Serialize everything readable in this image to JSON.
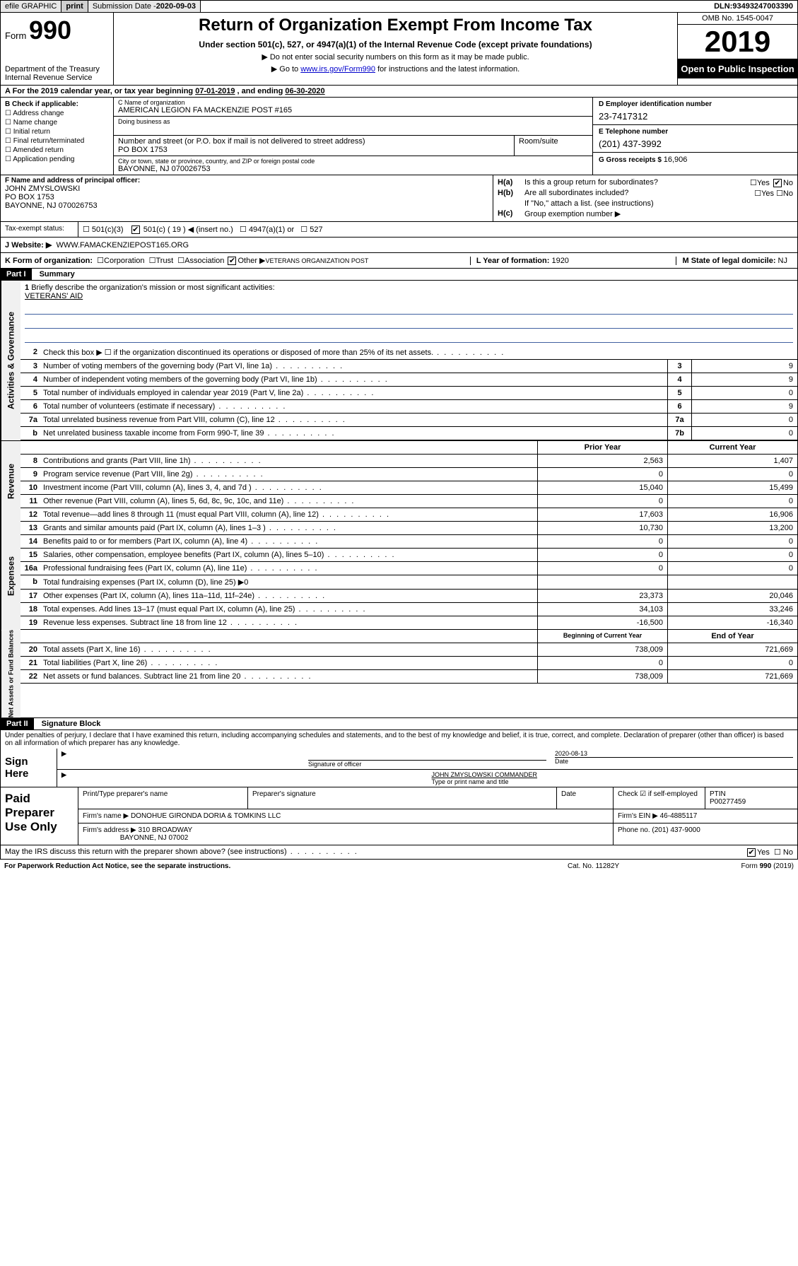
{
  "topbar": {
    "efile": "efile GRAPHIC",
    "print": "print",
    "subdate_label": "Submission Date - ",
    "subdate": "2020-09-03",
    "dln_label": "DLN: ",
    "dln": "93493247003390"
  },
  "header": {
    "form_label": "Form",
    "form_num": "990",
    "dept": "Department of the Treasury\nInternal Revenue Service",
    "title": "Return of Organization Exempt From Income Tax",
    "sub1": "Under section 501(c), 527, or 4947(a)(1) of the Internal Revenue Code (except private foundations)",
    "sub2": "▶ Do not enter social security numbers on this form as it may be made public.",
    "sub3_pre": "▶ Go to ",
    "sub3_link": "www.irs.gov/Form990",
    "sub3_post": " for instructions and the latest information.",
    "omb": "OMB No. 1545-0047",
    "year": "2019",
    "open": "Open to Public Inspection"
  },
  "period": {
    "text": "A For the 2019 calendar year, or tax year beginning ",
    "begin": "07-01-2019",
    "mid": " , and ending ",
    "end": "06-30-2020"
  },
  "checkif": {
    "label": "B Check if applicable:",
    "opts": [
      "Address change",
      "Name change",
      "Initial return",
      "Final return/terminated",
      "Amended return",
      "Application pending"
    ]
  },
  "entity": {
    "name_label": "C Name of organization",
    "name": "AMERICAN LEGION FA MACKENZIE POST #165",
    "dba_label": "Doing business as",
    "addr_label": "Number and street (or P.O. box if mail is not delivered to street address)",
    "room_label": "Room/suite",
    "addr": "PO BOX 1753",
    "city_label": "City or town, state or province, country, and ZIP or foreign postal code",
    "city": "BAYONNE, NJ  070026753"
  },
  "ein": {
    "label": "D Employer identification number",
    "value": "23-7417312"
  },
  "tel": {
    "label": "E Telephone number",
    "value": "(201) 437-3992"
  },
  "gross": {
    "label": "G Gross receipts $ ",
    "value": "16,906"
  },
  "officer": {
    "label": "F  Name and address of principal officer:",
    "name": "JOHN ZMYSLOWSKI",
    "addr1": "PO BOX 1753",
    "addr2": "BAYONNE, NJ  070026753"
  },
  "h": {
    "ha": "Is this a group return for subordinates?",
    "ha_yes": "Yes",
    "ha_no": "No",
    "hb": "Are all subordinates included?",
    "hb_note": "If \"No,\" attach a list. (see instructions)",
    "hc": "Group exemption number ▶"
  },
  "taxexempt": {
    "label": "Tax-exempt status:",
    "c19": "501(c) ( 19 ) ◀ (insert no.)",
    "o1": "501(c)(3)",
    "o2": "4947(a)(1) or",
    "o3": "527"
  },
  "website": {
    "label": "J  Website: ▶",
    "value": "WWW.FAMACKENZIEPOST165.ORG"
  },
  "k": {
    "label": "K Form of organization:",
    "opts": [
      "Corporation",
      "Trust",
      "Association"
    ],
    "other_label": "Other ▶",
    "other": "VETERANS ORGANIZATION POST",
    "l_label": "L Year of formation: ",
    "l_val": "1920",
    "m_label": "M State of legal domicile: ",
    "m_val": "NJ"
  },
  "part1": {
    "hdr": "Part I",
    "title": "Summary"
  },
  "mission": {
    "num": "1",
    "label": "Briefly describe the organization's mission or most significant activities:",
    "text": "VETERANS' AID"
  },
  "gov_rows": [
    {
      "n": "2",
      "t": "Check this box ▶ ☐  if the organization discontinued its operations or disposed of more than 25% of its net assets."
    },
    {
      "n": "3",
      "t": "Number of voting members of the governing body (Part VI, line 1a)",
      "box": "3",
      "v": "9"
    },
    {
      "n": "4",
      "t": "Number of independent voting members of the governing body (Part VI, line 1b)",
      "box": "4",
      "v": "9"
    },
    {
      "n": "5",
      "t": "Total number of individuals employed in calendar year 2019 (Part V, line 2a)",
      "box": "5",
      "v": "0"
    },
    {
      "n": "6",
      "t": "Total number of volunteers (estimate if necessary)",
      "box": "6",
      "v": "9"
    },
    {
      "n": "7a",
      "t": "Total unrelated business revenue from Part VIII, column (C), line 12",
      "box": "7a",
      "v": "0"
    },
    {
      "n": "b",
      "t": "Net unrelated business taxable income from Form 990-T, line 39",
      "box": "7b",
      "v": "0"
    }
  ],
  "col_hdr": {
    "prior": "Prior Year",
    "current": "Current Year"
  },
  "rev_rows": [
    {
      "n": "8",
      "t": "Contributions and grants (Part VIII, line 1h)",
      "p": "2,563",
      "c": "1,407"
    },
    {
      "n": "9",
      "t": "Program service revenue (Part VIII, line 2g)",
      "p": "0",
      "c": "0"
    },
    {
      "n": "10",
      "t": "Investment income (Part VIII, column (A), lines 3, 4, and 7d )",
      "p": "15,040",
      "c": "15,499"
    },
    {
      "n": "11",
      "t": "Other revenue (Part VIII, column (A), lines 5, 6d, 8c, 9c, 10c, and 11e)",
      "p": "0",
      "c": "0"
    },
    {
      "n": "12",
      "t": "Total revenue—add lines 8 through 11 (must equal Part VIII, column (A), line 12)",
      "p": "17,603",
      "c": "16,906"
    }
  ],
  "exp_rows": [
    {
      "n": "13",
      "t": "Grants and similar amounts paid (Part IX, column (A), lines 1–3 )",
      "p": "10,730",
      "c": "13,200"
    },
    {
      "n": "14",
      "t": "Benefits paid to or for members (Part IX, column (A), line 4)",
      "p": "0",
      "c": "0"
    },
    {
      "n": "15",
      "t": "Salaries, other compensation, employee benefits (Part IX, column (A), lines 5–10)",
      "p": "0",
      "c": "0"
    },
    {
      "n": "16a",
      "t": "Professional fundraising fees (Part IX, column (A), line 11e)",
      "p": "0",
      "c": "0"
    },
    {
      "n": "b",
      "t": "Total fundraising expenses (Part IX, column (D), line 25) ▶0",
      "shade": true
    },
    {
      "n": "17",
      "t": "Other expenses (Part IX, column (A), lines 11a–11d, 11f–24e)",
      "p": "23,373",
      "c": "20,046"
    },
    {
      "n": "18",
      "t": "Total expenses. Add lines 13–17 (must equal Part IX, column (A), line 25)",
      "p": "34,103",
      "c": "33,246"
    },
    {
      "n": "19",
      "t": "Revenue less expenses. Subtract line 18 from line 12",
      "p": "-16,500",
      "c": "-16,340"
    }
  ],
  "na_hdr": {
    "begin": "Beginning of Current Year",
    "end": "End of Year"
  },
  "na_rows": [
    {
      "n": "20",
      "t": "Total assets (Part X, line 16)",
      "p": "738,009",
      "c": "721,669"
    },
    {
      "n": "21",
      "t": "Total liabilities (Part X, line 26)",
      "p": "0",
      "c": "0"
    },
    {
      "n": "22",
      "t": "Net assets or fund balances. Subtract line 21 from line 20",
      "p": "738,009",
      "c": "721,669"
    }
  ],
  "sidelabels": {
    "gov": "Activities & Governance",
    "rev": "Revenue",
    "exp": "Expenses",
    "na": "Net Assets or Fund Balances"
  },
  "part2": {
    "hdr": "Part II",
    "title": "Signature Block"
  },
  "perjury": "Under penalties of perjury, I declare that I have examined this return, including accompanying schedules and statements, and to the best of my knowledge and belief, it is true, correct, and complete. Declaration of preparer (other than officer) is based on all information of which preparer has any knowledge.",
  "sign": {
    "here": "Sign Here",
    "sig_label": "Signature of officer",
    "date_label": "Date",
    "date": "2020-08-13",
    "name": "JOHN ZMYSLOWSKI COMMANDER",
    "name_label": "Type or print name and title"
  },
  "prep": {
    "label": "Paid Preparer Use Only",
    "h1": "Print/Type preparer's name",
    "h2": "Preparer's signature",
    "h3": "Date",
    "h4": "Check ☑ if self-employed",
    "ptin_label": "PTIN",
    "ptin": "P00277459",
    "firm_label": "Firm's name   ▶",
    "firm": "DONOHUE GIRONDA DORIA & TOMKINS LLC",
    "ein_label": "Firm's EIN ▶ ",
    "ein": "46-4885117",
    "addr_label": "Firm's address ▶",
    "addr": "310 BROADWAY",
    "addr2": "BAYONNE, NJ  07002",
    "phone_label": "Phone no. ",
    "phone": "(201) 437-9000"
  },
  "discuss": "May the IRS discuss this return with the preparer shown above? (see instructions)",
  "footer": {
    "pra": "For Paperwork Reduction Act Notice, see the separate instructions.",
    "cat": "Cat. No. 11282Y",
    "form": "Form 990 (2019)"
  }
}
